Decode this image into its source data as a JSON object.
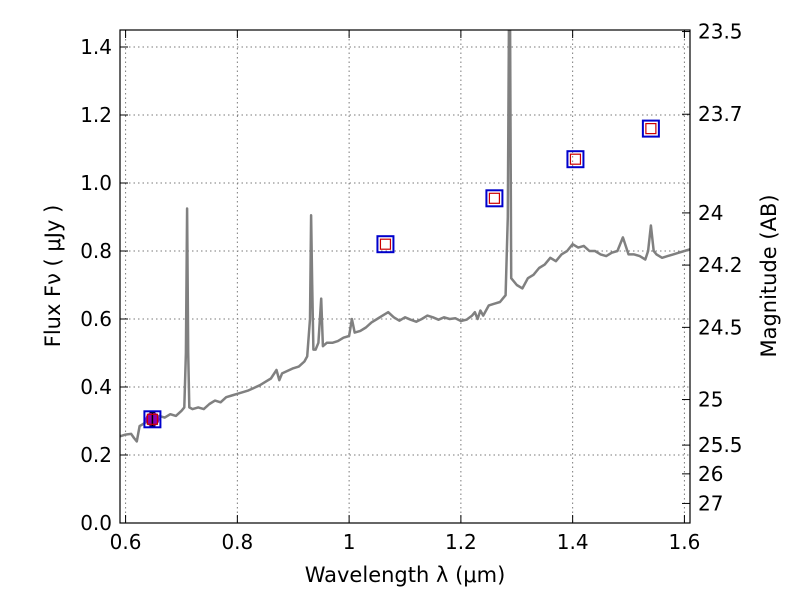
{
  "chart_data": {
    "type": "line",
    "xlabel": "Wavelength  λ (μm)",
    "ylabel": "Flux  Fν  ( μJy )",
    "y2label": "Magnitude (AB)",
    "xlim": [
      0.59,
      1.61
    ],
    "ylim": [
      0.0,
      1.45
    ],
    "grid": true,
    "x_ticks": [
      0.6,
      0.8,
      1.0,
      1.2,
      1.4,
      1.6
    ],
    "x_tick_labels": [
      "0.6",
      "0.8",
      "1",
      "1.2",
      "1.4",
      "1.6"
    ],
    "y_ticks": [
      0.0,
      0.2,
      0.4,
      0.6,
      0.8,
      1.0,
      1.2,
      1.4
    ],
    "y_tick_labels": [
      "0.0",
      "0.2",
      "0.4",
      "0.6",
      "0.8",
      "1.0",
      "1.2",
      "1.4"
    ],
    "mag_ticks": [
      23.5,
      23.7,
      24,
      24.2,
      24.5,
      25,
      25.5,
      26,
      27
    ],
    "mag_tick_labels": [
      "23.5",
      "23.7",
      "24",
      "24.2",
      "24.5",
      "25",
      "25.5",
      "26",
      "27"
    ],
    "colors": {
      "spectrum": "#808080",
      "photometry_outer": "#0000cc",
      "photometry_inner": "#cc0000",
      "detection_marker": "#8b00b0",
      "grid": "#7a7a7a"
    },
    "series": [
      {
        "kind": "spectrum",
        "points": [
          [
            0.59,
            0.255
          ],
          [
            0.6,
            0.26
          ],
          [
            0.61,
            0.262
          ],
          [
            0.615,
            0.25
          ],
          [
            0.62,
            0.24
          ],
          [
            0.625,
            0.285
          ],
          [
            0.63,
            0.29
          ],
          [
            0.64,
            0.3
          ],
          [
            0.65,
            0.31
          ],
          [
            0.66,
            0.315
          ],
          [
            0.67,
            0.31
          ],
          [
            0.68,
            0.32
          ],
          [
            0.69,
            0.315
          ],
          [
            0.7,
            0.33
          ],
          [
            0.705,
            0.34
          ],
          [
            0.708,
            0.5
          ],
          [
            0.71,
            0.925
          ],
          [
            0.712,
            0.5
          ],
          [
            0.714,
            0.34
          ],
          [
            0.72,
            0.335
          ],
          [
            0.73,
            0.34
          ],
          [
            0.74,
            0.335
          ],
          [
            0.75,
            0.35
          ],
          [
            0.76,
            0.36
          ],
          [
            0.77,
            0.355
          ],
          [
            0.78,
            0.37
          ],
          [
            0.79,
            0.375
          ],
          [
            0.8,
            0.38
          ],
          [
            0.82,
            0.39
          ],
          [
            0.84,
            0.405
          ],
          [
            0.86,
            0.425
          ],
          [
            0.87,
            0.45
          ],
          [
            0.875,
            0.42
          ],
          [
            0.88,
            0.44
          ],
          [
            0.9,
            0.455
          ],
          [
            0.91,
            0.46
          ],
          [
            0.92,
            0.475
          ],
          [
            0.925,
            0.49
          ],
          [
            0.93,
            0.6
          ],
          [
            0.932,
            0.905
          ],
          [
            0.934,
            0.7
          ],
          [
            0.936,
            0.51
          ],
          [
            0.94,
            0.51
          ],
          [
            0.945,
            0.53
          ],
          [
            0.95,
            0.66
          ],
          [
            0.953,
            0.52
          ],
          [
            0.96,
            0.53
          ],
          [
            0.97,
            0.53
          ],
          [
            0.98,
            0.535
          ],
          [
            0.99,
            0.545
          ],
          [
            1.0,
            0.55
          ],
          [
            1.005,
            0.6
          ],
          [
            1.01,
            0.56
          ],
          [
            1.02,
            0.565
          ],
          [
            1.03,
            0.575
          ],
          [
            1.04,
            0.59
          ],
          [
            1.05,
            0.6
          ],
          [
            1.06,
            0.61
          ],
          [
            1.07,
            0.62
          ],
          [
            1.08,
            0.605
          ],
          [
            1.09,
            0.595
          ],
          [
            1.1,
            0.605
          ],
          [
            1.11,
            0.598
          ],
          [
            1.12,
            0.592
          ],
          [
            1.13,
            0.6
          ],
          [
            1.14,
            0.61
          ],
          [
            1.15,
            0.605
          ],
          [
            1.16,
            0.598
          ],
          [
            1.17,
            0.605
          ],
          [
            1.18,
            0.6
          ],
          [
            1.19,
            0.602
          ],
          [
            1.2,
            0.594
          ],
          [
            1.21,
            0.598
          ],
          [
            1.22,
            0.61
          ],
          [
            1.225,
            0.62
          ],
          [
            1.23,
            0.6
          ],
          [
            1.235,
            0.625
          ],
          [
            1.24,
            0.61
          ],
          [
            1.25,
            0.64
          ],
          [
            1.26,
            0.645
          ],
          [
            1.27,
            0.65
          ],
          [
            1.275,
            0.66
          ],
          [
            1.28,
            0.67
          ],
          [
            1.284,
            0.9
          ],
          [
            1.286,
            1.45
          ],
          [
            1.288,
            1.45
          ],
          [
            1.29,
            0.72
          ],
          [
            1.3,
            0.7
          ],
          [
            1.31,
            0.69
          ],
          [
            1.32,
            0.72
          ],
          [
            1.33,
            0.73
          ],
          [
            1.34,
            0.75
          ],
          [
            1.35,
            0.76
          ],
          [
            1.36,
            0.78
          ],
          [
            1.37,
            0.77
          ],
          [
            1.38,
            0.79
          ],
          [
            1.39,
            0.8
          ],
          [
            1.4,
            0.82
          ],
          [
            1.41,
            0.81
          ],
          [
            1.42,
            0.815
          ],
          [
            1.43,
            0.8
          ],
          [
            1.44,
            0.8
          ],
          [
            1.45,
            0.79
          ],
          [
            1.46,
            0.785
          ],
          [
            1.47,
            0.795
          ],
          [
            1.48,
            0.8
          ],
          [
            1.49,
            0.84
          ],
          [
            1.5,
            0.79
          ],
          [
            1.51,
            0.79
          ],
          [
            1.52,
            0.785
          ],
          [
            1.53,
            0.775
          ],
          [
            1.535,
            0.8
          ],
          [
            1.54,
            0.875
          ],
          [
            1.545,
            0.8
          ],
          [
            1.55,
            0.79
          ],
          [
            1.56,
            0.78
          ],
          [
            1.57,
            0.785
          ],
          [
            1.58,
            0.79
          ],
          [
            1.59,
            0.795
          ],
          [
            1.6,
            0.8
          ],
          [
            1.61,
            0.805
          ]
        ]
      },
      {
        "kind": "photometry",
        "points": [
          [
            0.648,
            0.305
          ],
          [
            1.065,
            0.82
          ],
          [
            1.26,
            0.955
          ],
          [
            1.405,
            1.07
          ],
          [
            1.54,
            1.16
          ]
        ]
      },
      {
        "kind": "detection",
        "points": [
          [
            0.648,
            0.305
          ]
        ]
      }
    ]
  }
}
